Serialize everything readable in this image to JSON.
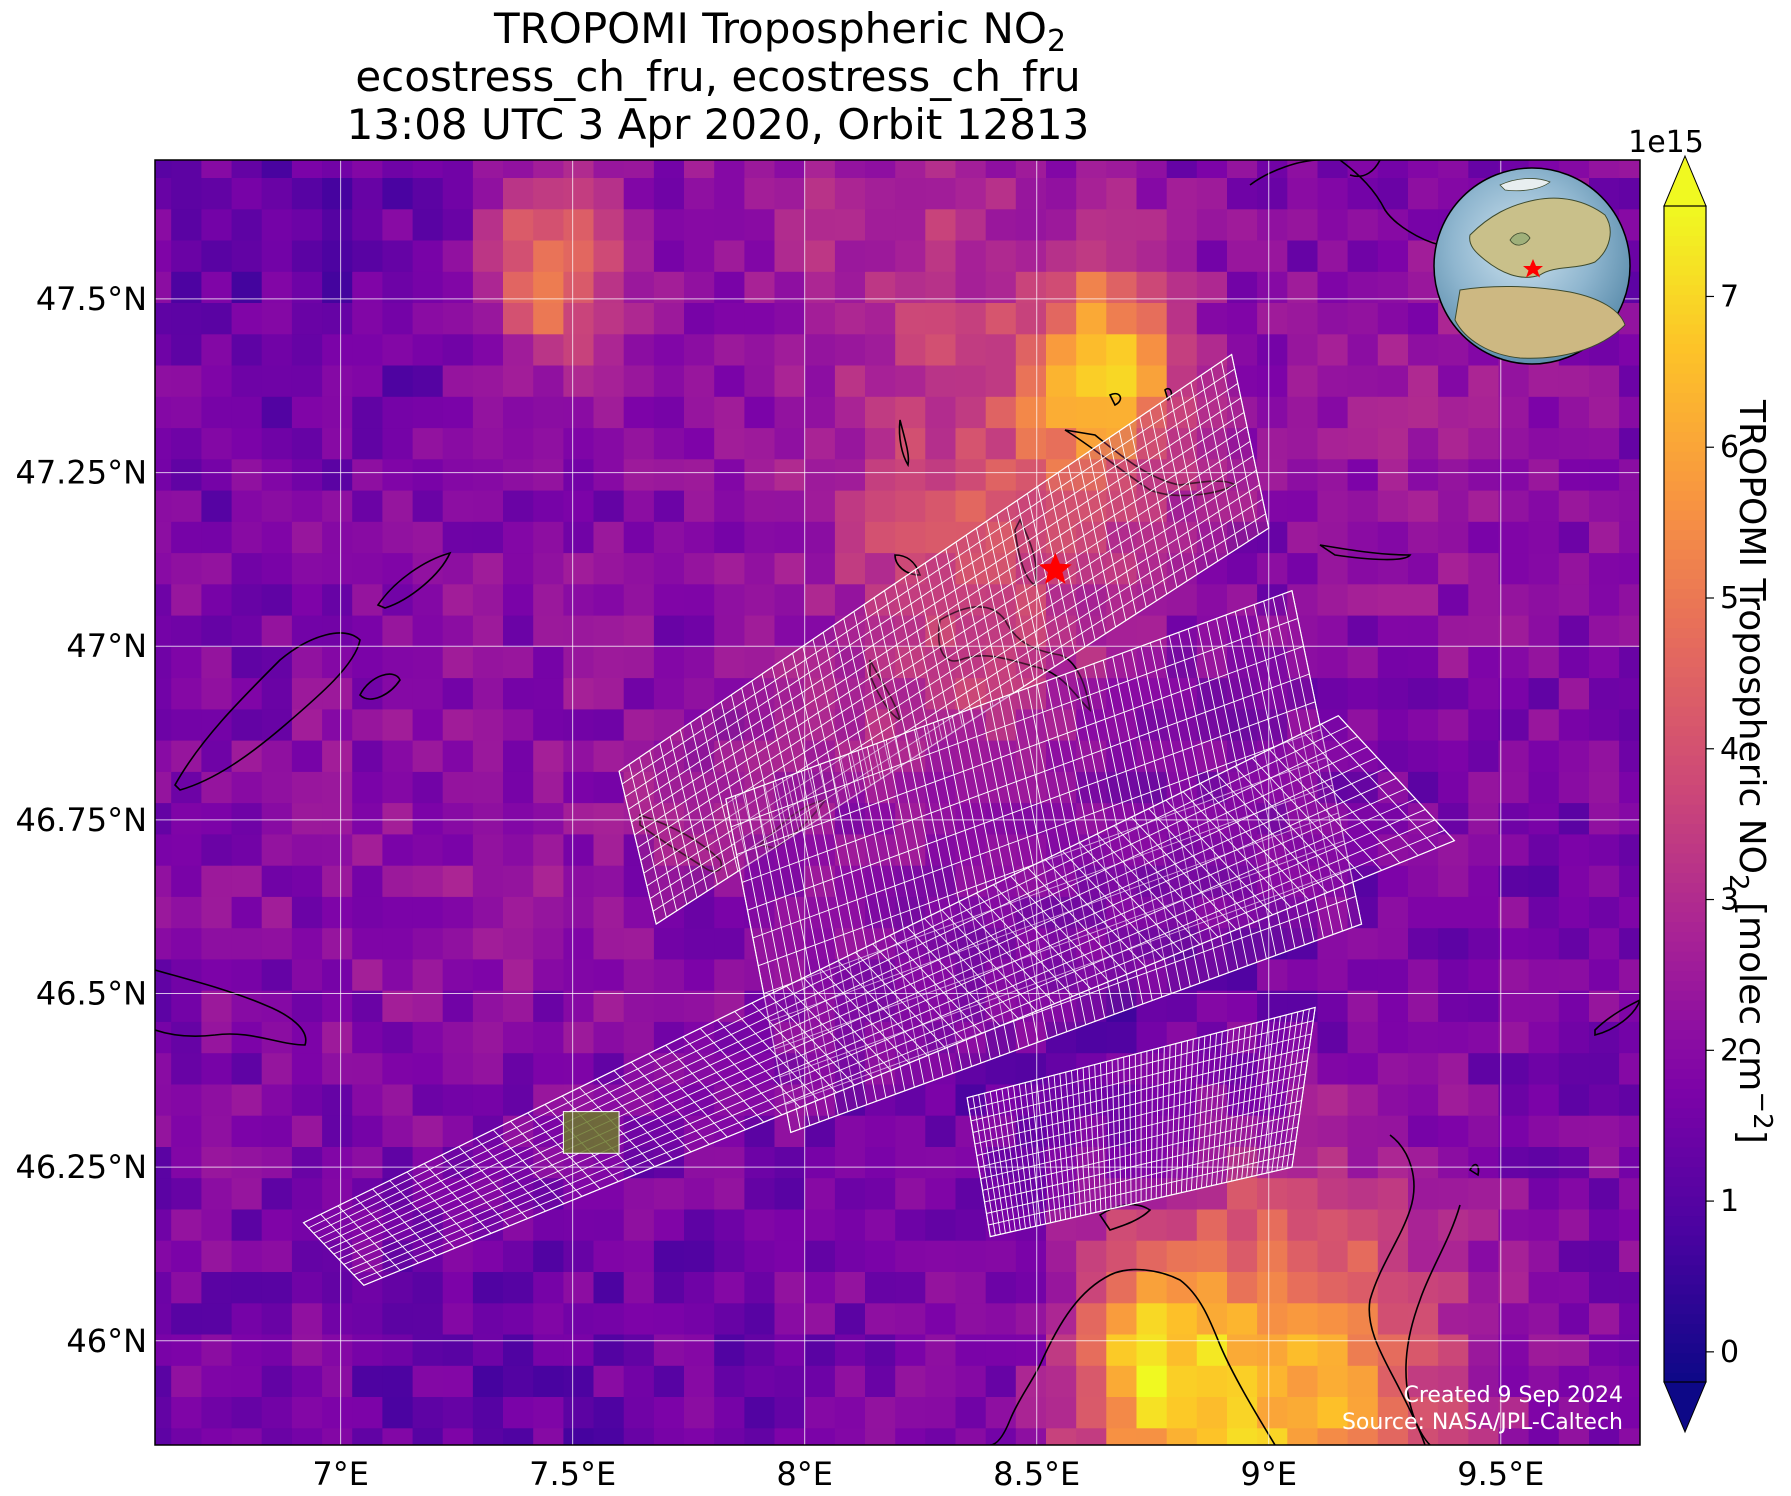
{
  "chart_data": {
    "type": "heatmap",
    "title": {
      "line1_main": "TROPOMI Tropospheric NO",
      "line1_sub": "2",
      "line2": "ecostress_ch_fru, ecostress_ch_fru",
      "line3": "13:08 UTC 3 Apr 2020, Orbit 12813"
    },
    "xlim": [
      6.6,
      9.8
    ],
    "ylim": [
      45.85,
      47.7
    ],
    "x_ticks": [
      {
        "value": 7.0,
        "label": "7°E"
      },
      {
        "value": 7.5,
        "label": "7.5°E"
      },
      {
        "value": 8.0,
        "label": "8°E"
      },
      {
        "value": 8.5,
        "label": "8.5°E"
      },
      {
        "value": 9.0,
        "label": "9°E"
      },
      {
        "value": 9.5,
        "label": "9.5°E"
      }
    ],
    "y_ticks": [
      {
        "value": 46.0,
        "label": "46°N"
      },
      {
        "value": 46.25,
        "label": "46.25°N"
      },
      {
        "value": 46.5,
        "label": "46.5°N"
      },
      {
        "value": 46.75,
        "label": "46.75°N"
      },
      {
        "value": 47.0,
        "label": "47°N"
      },
      {
        "value": 47.25,
        "label": "47.25°N"
      },
      {
        "value": 47.5,
        "label": "47.5°N"
      }
    ],
    "grid": true,
    "colorbar": {
      "colormap": "plasma",
      "exponent_label": "1e15",
      "vmin": -0.2,
      "vmax": 7.6,
      "extend": "both",
      "label_main": "TROPOMI Tropospheric NO",
      "label_sub": "2",
      "label_units": " [molec cm",
      "label_sup": "−2",
      "label_end": "]",
      "ticks": [
        {
          "value": 0,
          "label": "0"
        },
        {
          "value": 1,
          "label": "1"
        },
        {
          "value": 2,
          "label": "2"
        },
        {
          "value": 3,
          "label": "3"
        },
        {
          "value": 4,
          "label": "4"
        },
        {
          "value": 5,
          "label": "5"
        },
        {
          "value": 6,
          "label": "6"
        },
        {
          "value": 7,
          "label": "7"
        }
      ]
    },
    "target": {
      "lon": 8.54,
      "lat": 47.11,
      "marker": "red star"
    },
    "credits": [
      "Created 9 Sep 2024",
      "Source: NASA/JPL-Caltech"
    ],
    "hotspots": [
      {
        "lon": 8.62,
        "lat": 47.36,
        "sigma": 0.12,
        "value": 4.4
      },
      {
        "lon": 7.42,
        "lat": 47.52,
        "sigma": 0.1,
        "value": 3.6
      },
      {
        "lon": 8.35,
        "lat": 47.05,
        "sigma": 0.22,
        "value": 2.2
      },
      {
        "lon": 9.0,
        "lat": 45.88,
        "sigma": 0.25,
        "value": 4.8
      },
      {
        "lon": 8.7,
        "lat": 45.95,
        "sigma": 0.12,
        "value": 3.2
      },
      {
        "lon": 8.2,
        "lat": 47.55,
        "sigma": 0.3,
        "value": 1.2
      },
      {
        "lon": 9.3,
        "lat": 47.25,
        "sigma": 0.25,
        "value": 0.8
      },
      {
        "lon": 7.3,
        "lat": 46.6,
        "sigma": 0.4,
        "value": 0.6
      }
    ],
    "low_zones": [
      {
        "lon": 8.7,
        "lat": 46.55,
        "sigma": 0.35,
        "value": -0.6
      },
      {
        "lon": 7.35,
        "lat": 46.0,
        "sigma": 0.35,
        "value": -0.5
      },
      {
        "lon": 6.9,
        "lat": 47.55,
        "sigma": 0.25,
        "value": -0.5
      }
    ],
    "base_level": 1.7,
    "overlay_swaths": [
      {
        "name": "north-swath",
        "corners": [
          [
            7.6,
            46.82
          ],
          [
            8.92,
            47.42
          ],
          [
            9.0,
            47.17
          ],
          [
            7.68,
            46.6
          ]
        ],
        "value": 3.4
      },
      {
        "name": "middle-swath",
        "corners": [
          [
            7.83,
            46.78
          ],
          [
            9.05,
            47.08
          ],
          [
            9.2,
            46.6
          ],
          [
            7.97,
            46.3
          ]
        ],
        "value": 2.5
      },
      {
        "name": "long-diagonal-swath",
        "corners": [
          [
            6.92,
            46.17
          ],
          [
            9.15,
            46.9
          ],
          [
            9.4,
            46.72
          ],
          [
            7.05,
            46.08
          ]
        ],
        "value": 2.0
      },
      {
        "name": "south-lobe",
        "corners": [
          [
            8.35,
            46.35
          ],
          [
            9.1,
            46.48
          ],
          [
            9.05,
            46.25
          ],
          [
            8.4,
            46.15
          ]
        ],
        "value": 1.8
      }
    ],
    "highlighted_pixel": {
      "lon_min": 7.48,
      "lon_max": 7.6,
      "lat_min": 46.27,
      "lat_max": 46.33
    }
  }
}
